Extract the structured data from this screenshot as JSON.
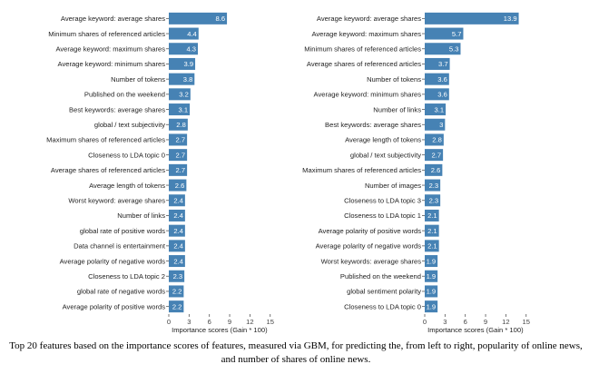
{
  "colors": {
    "bar": "#4682b4",
    "value_text": "#ffffff",
    "tick": "#555555"
  },
  "chart_data": [
    {
      "type": "bar",
      "orientation": "horizontal",
      "categories": [
        "Average keyword: average shares",
        "Minimum shares of referenced articles",
        "Average keyword: maximum shares",
        "Average keyword: minimum shares",
        "Number of tokens",
        "Published on the weekend",
        "Best keywords: average shares",
        "global / text subjectivity",
        "Maximum shares of referenced articles",
        "Closeness to LDA topic 0",
        "Average shares of referenced articles",
        "Average length of tokens",
        "Worst keyword: average shares",
        "Number of links",
        "global rate of positive words",
        "Data channel is entertainment",
        "Average polarity of negative words",
        "Closeness to LDA topic 2",
        "global rate of negative words",
        "Average polarity of positive words"
      ],
      "values": [
        8.6,
        4.4,
        4.3,
        3.9,
        3.8,
        3.2,
        3.1,
        2.8,
        2.7,
        2.7,
        2.7,
        2.6,
        2.4,
        2.4,
        2.4,
        2.4,
        2.4,
        2.3,
        2.2,
        2.2
      ],
      "value_labels": [
        "8.6",
        "4.4",
        "4.3",
        "3.9",
        "3.8",
        "3.2",
        "3.1",
        "2.8",
        "2.7",
        "2.7",
        "2.7",
        "2.6",
        "2.4",
        "2.4",
        "2.4",
        "2.4",
        "2.4",
        "2.3",
        "2.2",
        "2.2"
      ],
      "xlabel": "Importance scores (Gain * 100)",
      "xticks": [
        "0",
        "3",
        "6",
        "9",
        "12",
        "15"
      ],
      "xlim": [
        0,
        15
      ],
      "grid": false
    },
    {
      "type": "bar",
      "orientation": "horizontal",
      "categories": [
        "Average keyword: average shares",
        "Average keyword: maximum shares",
        "Minimum shares of referenced articles",
        "Average shares of referenced articles",
        "Number of tokens",
        "Average keyword: minimum shares",
        "Number of links",
        "Best keywords: average shares",
        "Average length of tokens",
        "global / text subjectivity",
        "Maximum shares of referenced articles",
        "Number of images",
        "Closeness to LDA topic 3",
        "Closeness to LDA topic 1",
        "Average polarity of positive words",
        "Average polarity of negative words",
        "Worst keywords: average shares",
        "Published on the weekend",
        "global sentiment polarity",
        "Closeness to LDA topic 0"
      ],
      "values": [
        13.9,
        5.7,
        5.3,
        3.7,
        3.6,
        3.6,
        3.1,
        3.0,
        2.8,
        2.7,
        2.6,
        2.3,
        2.3,
        2.1,
        2.1,
        2.1,
        1.9,
        1.9,
        1.9,
        1.9
      ],
      "value_labels": [
        "13.9",
        "5.7",
        "5.3",
        "3.7",
        "3.6",
        "3.6",
        "3.1",
        "3",
        "2.8",
        "2.7",
        "2.6",
        "2.3",
        "2.3",
        "2.1",
        "2.1",
        "2.1",
        "1.9",
        "1.9",
        "1.9",
        "1.9"
      ],
      "xlabel": "Importance scores (Gain * 100)",
      "xticks": [
        "0",
        "3",
        "6",
        "9",
        "12",
        "15"
      ],
      "xlim": [
        0,
        15
      ],
      "grid": false
    }
  ],
  "caption": "Top 20 features based on the importance scores of features, measured via GBM, for predicting the, from left to right, popularity of online news, and number of shares of online news."
}
